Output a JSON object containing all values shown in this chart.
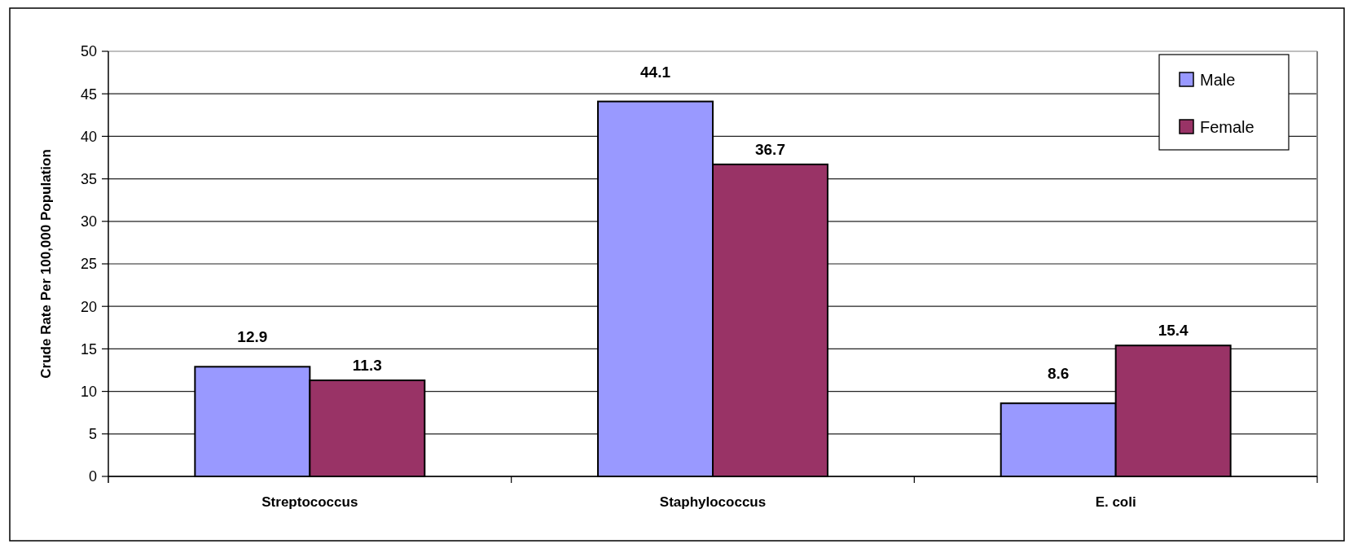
{
  "chart_data": {
    "type": "bar",
    "ylabel": "Crude Rate Per 100,000 Population",
    "categories": [
      "Streptococcus",
      "Staphylococcus",
      "E. coli"
    ],
    "series": [
      {
        "name": "Male",
        "color": "#9999ff",
        "values": [
          12.9,
          44.1,
          8.6
        ]
      },
      {
        "name": "Female",
        "color": "#993366",
        "values": [
          11.3,
          36.7,
          15.4
        ]
      }
    ],
    "ylim": [
      0,
      50
    ],
    "yticks": [
      0,
      5,
      10,
      15,
      20,
      25,
      30,
      35,
      40,
      45,
      50
    ],
    "grid": "y",
    "legend": "top right",
    "data_labels": true
  }
}
